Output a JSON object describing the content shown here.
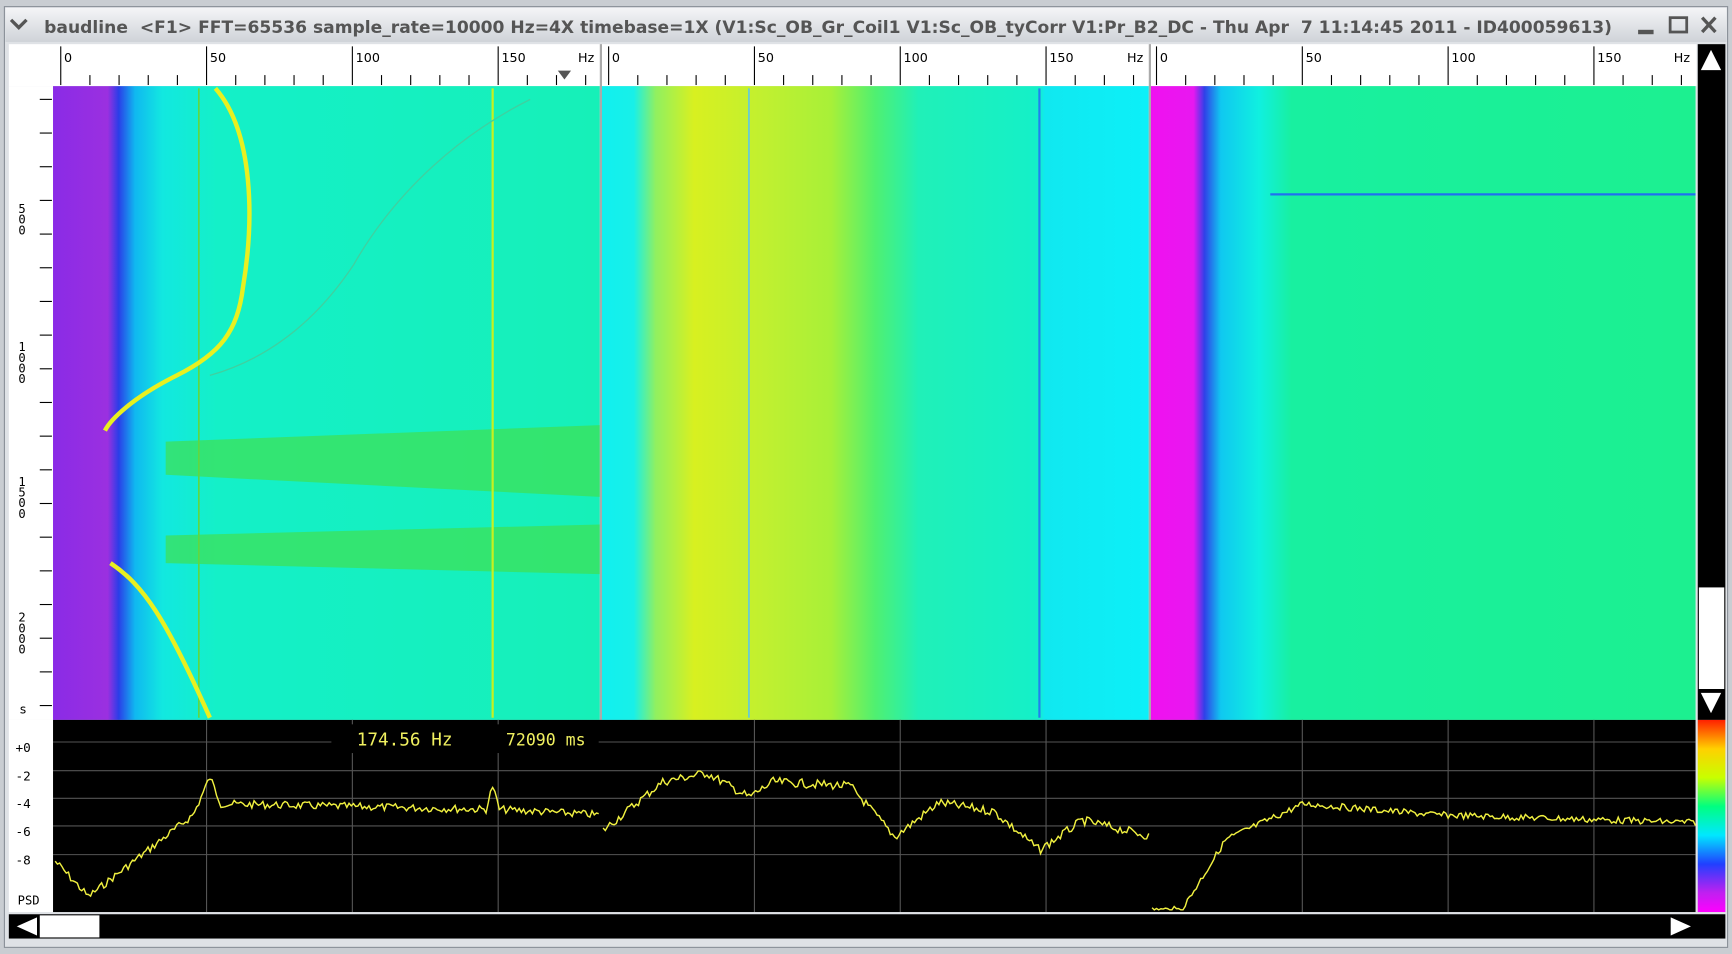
{
  "window": {
    "title": "baudline  <F1> FFT=65536 sample_rate=10000 Hz=4X timebase=1X (V1:Sc_OB_Gr_Coil1 V1:Sc_OB_tyCorr V1:Pr_B2_DC - Thu Apr  7 11:14:45 2011 - ID400059613)"
  },
  "panels": [
    {
      "freq_ticks": [
        "0",
        "50",
        "100",
        "150"
      ],
      "unit": "Hz"
    },
    {
      "freq_ticks": [
        "0",
        "50",
        "100",
        "150"
      ],
      "unit": "Hz"
    },
    {
      "freq_ticks": [
        "0",
        "50",
        "100",
        "150"
      ],
      "unit": "Hz"
    }
  ],
  "time_axis": {
    "ticks": [
      "500",
      "1000",
      "1500",
      "2000"
    ],
    "unit": "s"
  },
  "readout": {
    "frequency": "174.56 Hz",
    "time": "72090 ms"
  },
  "psd_axis": {
    "ticks": [
      "+0",
      "-2",
      "-4",
      "-6",
      "-8"
    ],
    "label": "PSD"
  }
}
